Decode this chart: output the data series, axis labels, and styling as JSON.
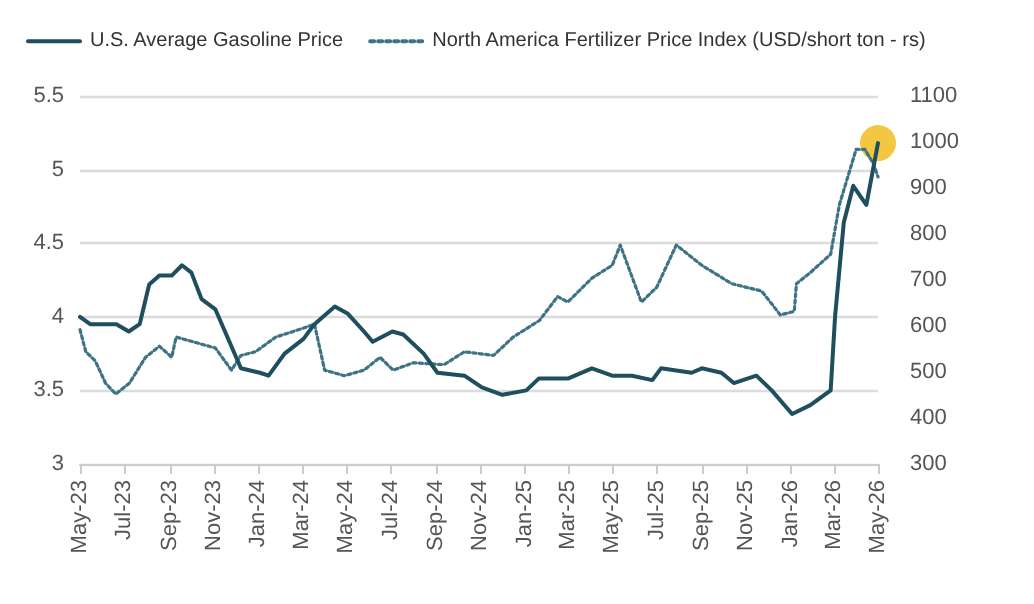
{
  "chart_data": {
    "type": "line",
    "legend": "top",
    "grid": "y",
    "marker": "none",
    "xlim": [
      "2023-05-01",
      "2026-05-01"
    ],
    "xticks": [
      {
        "value": "2023-05-01",
        "label": "May-23"
      },
      {
        "value": "2023-07-01",
        "label": "Jul-23"
      },
      {
        "value": "2023-09-01",
        "label": "Sep-23"
      },
      {
        "value": "2023-11-01",
        "label": "Nov-23"
      },
      {
        "value": "2024-01-01",
        "label": "Jan-24"
      },
      {
        "value": "2024-03-01",
        "label": "Mar-24"
      },
      {
        "value": "2024-05-01",
        "label": "May-24"
      },
      {
        "value": "2024-07-01",
        "label": "Jul-24"
      },
      {
        "value": "2024-09-01",
        "label": "Sep-24"
      },
      {
        "value": "2024-11-01",
        "label": "Nov-24"
      },
      {
        "value": "2025-01-01",
        "label": "Jan-25"
      },
      {
        "value": "2025-03-01",
        "label": "Mar-25"
      },
      {
        "value": "2025-05-01",
        "label": "May-25"
      },
      {
        "value": "2025-07-01",
        "label": "Jul-25"
      },
      {
        "value": "2025-09-01",
        "label": "Sep-25"
      },
      {
        "value": "2025-11-01",
        "label": "Nov-25"
      },
      {
        "value": "2026-01-01",
        "label": "Jan-26"
      },
      {
        "value": "2026-03-01",
        "label": "Mar-26"
      },
      {
        "value": "2026-05-01",
        "label": "May-26"
      }
    ],
    "ylim": [
      3,
      5.5
    ],
    "yticks": [
      3,
      3.5,
      4,
      4.5,
      5,
      5.5
    ],
    "y2lim": [
      300,
      1100
    ],
    "y2ticks": [
      300,
      400,
      500,
      600,
      700,
      800,
      900,
      1000,
      1100
    ],
    "series": [
      {
        "name": "U.S. Average Gasoline Price",
        "type": "line",
        "line_style": "solid",
        "color": "#1f4e5f",
        "x": [
          "2023-05-01",
          "2023-05-15",
          "2023-06-20",
          "2023-07-07",
          "2023-07-22",
          "2023-08-04",
          "2023-08-18",
          "2023-09-04",
          "2023-09-18",
          "2023-10-01",
          "2023-10-15",
          "2023-11-03",
          "2023-12-08",
          "2024-01-03",
          "2024-01-15",
          "2024-02-06",
          "2024-03-03",
          "2024-03-18",
          "2024-04-15",
          "2024-05-03",
          "2024-05-25",
          "2024-06-06",
          "2024-07-03",
          "2024-07-18",
          "2024-08-15",
          "2024-09-03",
          "2024-10-10",
          "2024-11-03",
          "2024-12-01",
          "2025-01-03",
          "2025-01-20",
          "2025-03-01",
          "2025-04-03",
          "2025-05-01",
          "2025-05-28",
          "2025-06-25",
          "2025-07-07",
          "2025-08-18",
          "2025-09-01",
          "2025-09-28",
          "2025-10-15",
          "2025-11-15",
          "2025-12-06",
          "2026-01-03",
          "2026-01-28",
          "2026-02-25",
          "2026-03-03",
          "2026-03-15",
          "2026-03-28",
          "2026-04-15",
          "2026-05-01"
        ],
        "values": [
          4.0,
          3.95,
          3.95,
          3.9,
          3.95,
          4.22,
          4.28,
          4.28,
          4.35,
          4.3,
          4.12,
          4.05,
          3.65,
          3.62,
          3.6,
          3.75,
          3.85,
          3.95,
          4.07,
          4.02,
          3.9,
          3.83,
          3.9,
          3.88,
          3.75,
          3.62,
          3.6,
          3.52,
          3.47,
          3.5,
          3.58,
          3.58,
          3.65,
          3.6,
          3.6,
          3.57,
          3.65,
          3.62,
          3.65,
          3.62,
          3.55,
          3.6,
          3.5,
          3.34,
          3.4,
          3.5,
          4.0,
          4.64,
          4.89,
          4.76,
          5.18
        ]
      },
      {
        "name": "North America Fertilizer Price Index (USD/short ton - rs)",
        "type": "line",
        "line_style": "dotted",
        "axis": "y2",
        "color": "#3d7385",
        "x": [
          "2023-05-01",
          "2023-05-09",
          "2023-05-22",
          "2023-06-05",
          "2023-06-19",
          "2023-07-08",
          "2023-07-30",
          "2023-08-18",
          "2023-09-04",
          "2023-09-10",
          "2023-10-07",
          "2023-11-03",
          "2023-11-25",
          "2023-12-08",
          "2023-12-28",
          "2024-01-25",
          "2024-03-04",
          "2024-03-18",
          "2024-04-01",
          "2024-04-28",
          "2024-05-25",
          "2024-06-16",
          "2024-07-04",
          "2024-08-01",
          "2024-09-12",
          "2024-10-10",
          "2024-11-19",
          "2024-12-16",
          "2025-01-21",
          "2025-02-15",
          "2025-03-01",
          "2025-04-03",
          "2025-05-01",
          "2025-05-12",
          "2025-06-10",
          "2025-07-01",
          "2025-07-28",
          "2025-09-01",
          "2025-10-12",
          "2025-11-22",
          "2025-12-18",
          "2026-01-06",
          "2026-01-09",
          "2026-01-28",
          "2026-02-25",
          "2026-03-09",
          "2026-04-01",
          "2026-04-13",
          "2026-04-25",
          "2026-05-01"
        ],
        "values": [
          592,
          544,
          524,
          476,
          452,
          476,
          532,
          556,
          532,
          576,
          564,
          552,
          504,
          536,
          544,
          576,
          596,
          604,
          504,
          492,
          504,
          532,
          504,
          520,
          516,
          544,
          536,
          576,
          612,
          664,
          652,
          704,
          732,
          776,
          652,
          684,
          776,
          732,
          692,
          676,
          624,
          632,
          692,
          716,
          756,
          864,
          984,
          984,
          952,
          924
        ]
      },
      {
        "type": "scatter",
        "marker": "circle",
        "color": "#f2c12e",
        "x": [
          "2026-05-01"
        ],
        "values": [
          5.18
        ]
      }
    ]
  }
}
